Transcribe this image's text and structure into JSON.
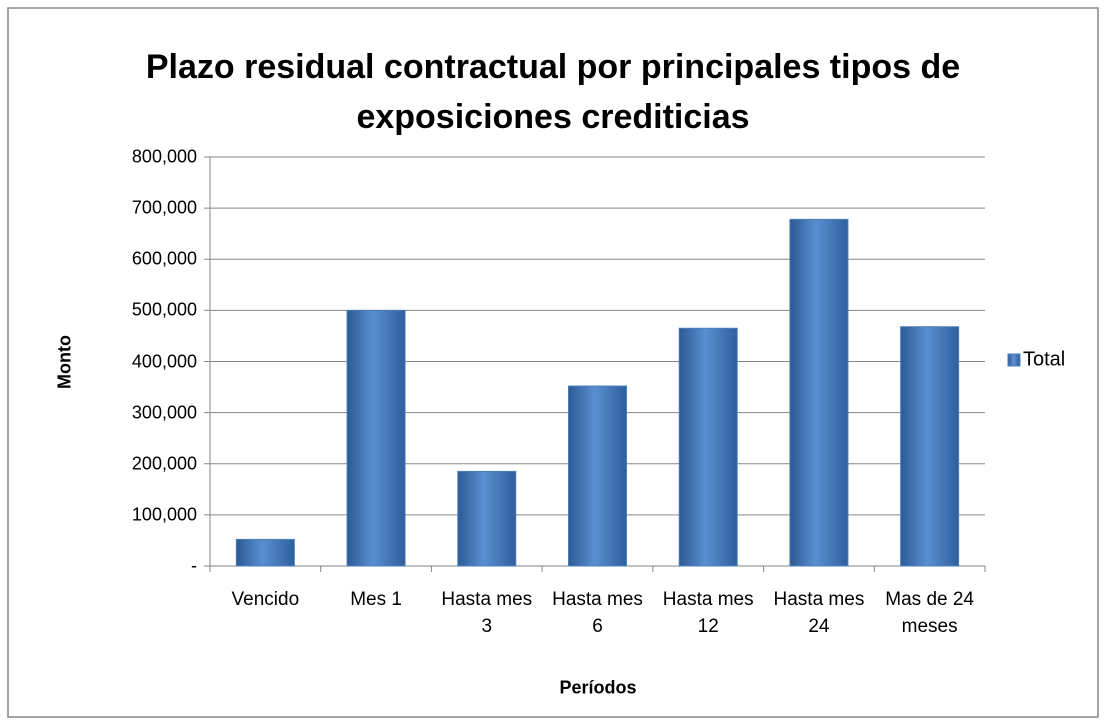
{
  "chart_data": {
    "type": "bar",
    "title": "Plazo residual contractual por principales tipos de exposiciones crediticias",
    "x_label": "Períodos",
    "y_label": "Monto",
    "categories": [
      "Vencido",
      "Mes 1",
      "Hasta mes 3",
      "Hasta mes 6",
      "Hasta mes 12",
      "Hasta mes 24",
      "Mas de 24 meses"
    ],
    "series": [
      {
        "name": "Total",
        "color": "#4a7ebb",
        "values": [
          52000,
          500000,
          185000,
          352000,
          465000,
          678000,
          468000
        ]
      }
    ],
    "ylim": [
      0,
      800000
    ],
    "yticks": [
      {
        "value": 0,
        "label": "-"
      },
      {
        "value": 100000,
        "label": "100,000"
      },
      {
        "value": 200000,
        "label": "200,000"
      },
      {
        "value": 300000,
        "label": "300,000"
      },
      {
        "value": 400000,
        "label": "400,000"
      },
      {
        "value": 500000,
        "label": "500,000"
      },
      {
        "value": 600000,
        "label": "600,000"
      },
      {
        "value": 700000,
        "label": "700,000"
      },
      {
        "value": 800000,
        "label": "800,000"
      }
    ],
    "grid": true,
    "legend": "right"
  }
}
